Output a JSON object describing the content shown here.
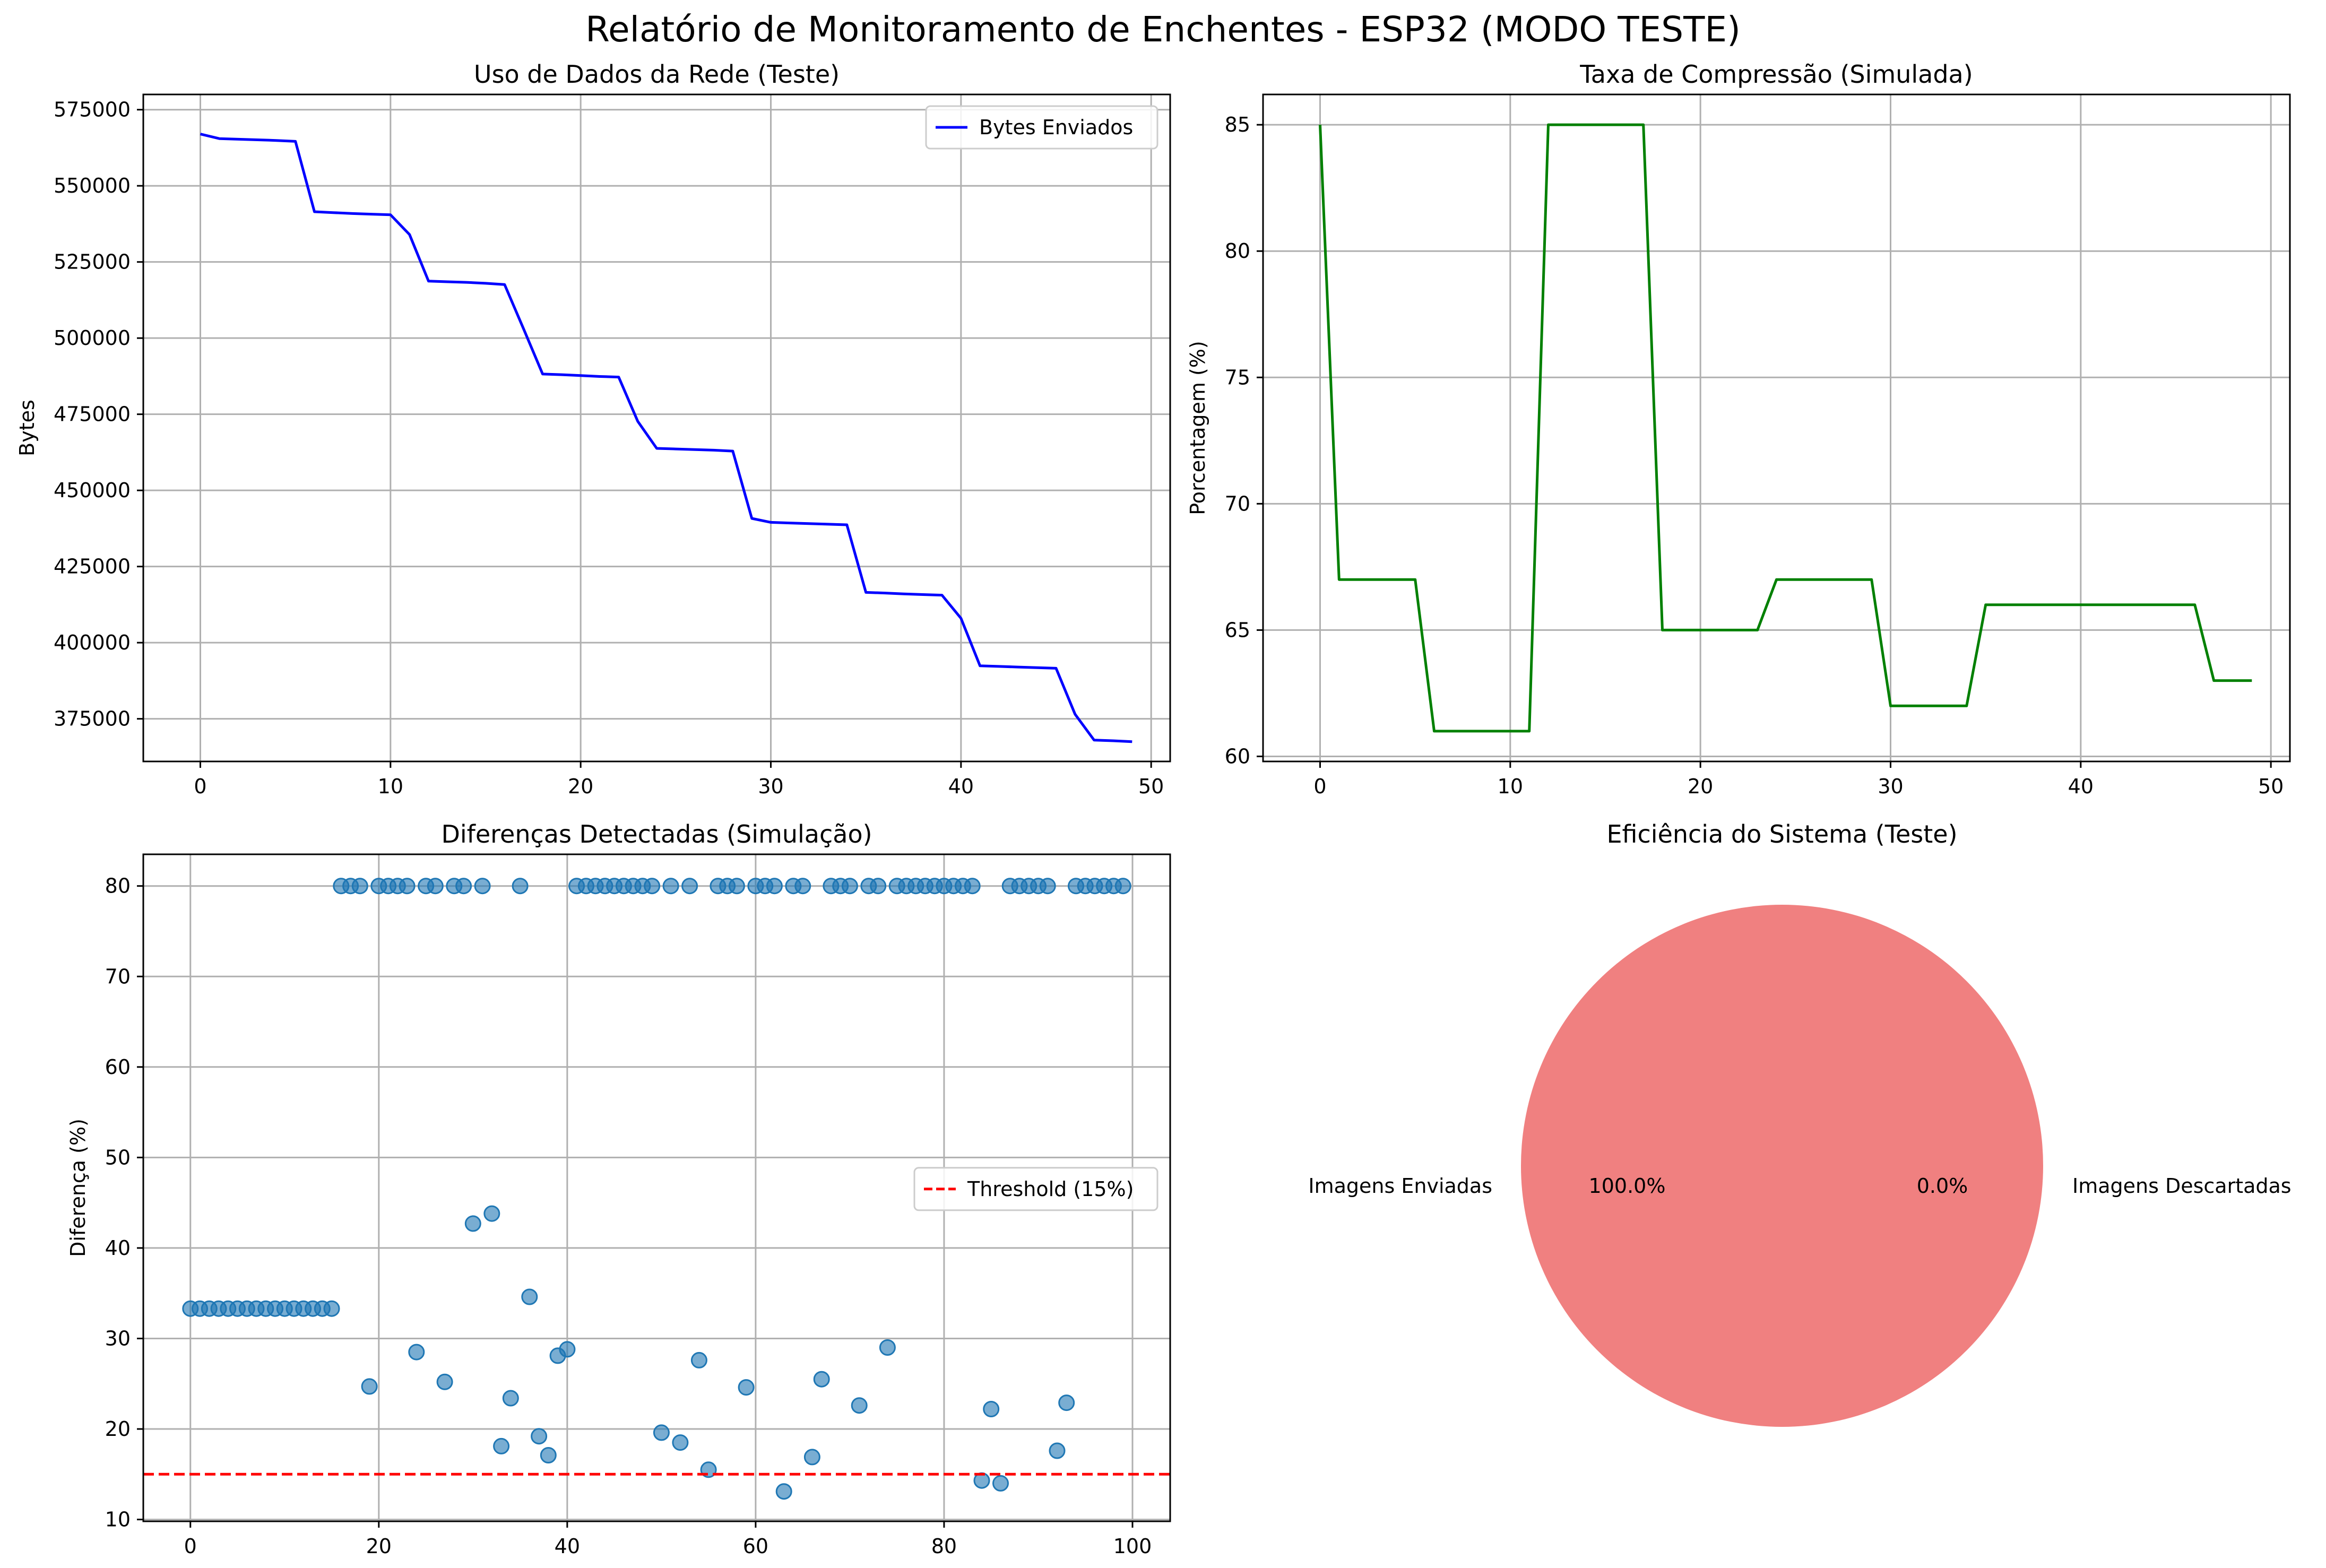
{
  "suptitle": "Relatório de Monitoramento de Enchentes - ESP32 (MODO TESTE)",
  "chart_data": [
    {
      "type": "line",
      "title": "Uso de Dados da Rede (Teste)",
      "xlabel": "",
      "ylabel": "Bytes",
      "xlim": [
        -3,
        51
      ],
      "ylim": [
        361000,
        580000
      ],
      "xticks": [
        0,
        10,
        20,
        30,
        40,
        50
      ],
      "yticks": [
        375000,
        400000,
        425000,
        450000,
        475000,
        500000,
        525000,
        550000,
        575000
      ],
      "grid": true,
      "legend": "top-right",
      "series": [
        {
          "name": "Bytes Enviados",
          "color": "#0000ff",
          "x": [
            0,
            1,
            2,
            3,
            4,
            5,
            6,
            7,
            8,
            9,
            10,
            11,
            12,
            13,
            14,
            15,
            16,
            17,
            18,
            19,
            20,
            21,
            22,
            23,
            24,
            25,
            26,
            27,
            28,
            29,
            30,
            31,
            32,
            33,
            34,
            35,
            36,
            37,
            38,
            39,
            40,
            41,
            42,
            43,
            44,
            45,
            46,
            47,
            48,
            49
          ],
          "y": [
            567000,
            565500,
            565300,
            565100,
            564900,
            564600,
            541500,
            541200,
            540900,
            540700,
            540500,
            534000,
            518700,
            518500,
            518300,
            518000,
            517600,
            503000,
            488200,
            488000,
            487700,
            487400,
            487200,
            472700,
            463800,
            463600,
            463400,
            463200,
            462900,
            440800,
            439500,
            439300,
            439100,
            438900,
            438700,
            416500,
            416300,
            416000,
            415800,
            415600,
            408000,
            392400,
            392200,
            392000,
            391800,
            391600,
            376500,
            368000,
            367800,
            367500
          ]
        }
      ]
    },
    {
      "type": "line",
      "title": "Taxa de Compressão (Simulada)",
      "xlabel": "",
      "ylabel": "Porcentagem (%)",
      "xlim": [
        -3,
        51
      ],
      "ylim": [
        59.8,
        86.2
      ],
      "xticks": [
        0,
        10,
        20,
        30,
        40,
        50
      ],
      "yticks": [
        60,
        65,
        70,
        75,
        80,
        85
      ],
      "grid": true,
      "series": [
        {
          "color": "#008000",
          "x": [
            0,
            1,
            2,
            3,
            4,
            5,
            6,
            7,
            8,
            9,
            10,
            11,
            12,
            13,
            14,
            15,
            16,
            17,
            18,
            19,
            20,
            21,
            22,
            23,
            24,
            25,
            26,
            27,
            28,
            29,
            30,
            31,
            32,
            33,
            34,
            35,
            36,
            37,
            38,
            39,
            40,
            41,
            42,
            43,
            44,
            45,
            46,
            47,
            48,
            49
          ],
          "y": [
            85,
            67,
            67,
            67,
            67,
            67,
            61,
            61,
            61,
            61,
            61,
            61,
            85,
            85,
            85,
            85,
            85,
            85,
            65,
            65,
            65,
            65,
            65,
            65,
            67,
            67,
            67,
            67,
            67,
            67,
            62,
            62,
            62,
            62,
            62,
            66,
            66,
            66,
            66,
            66,
            66,
            66,
            66,
            66,
            66,
            66,
            66,
            63,
            63,
            63
          ]
        }
      ]
    },
    {
      "type": "scatter",
      "title": "Diferenças Detectadas (Simulação)",
      "xlabel": "",
      "ylabel": "Diferença (%)",
      "xlim": [
        -5,
        104
      ],
      "ylim": [
        9.8,
        83.5
      ],
      "xticks": [
        0,
        20,
        40,
        60,
        80,
        100
      ],
      "yticks": [
        10,
        20,
        30,
        40,
        50,
        60,
        70,
        80
      ],
      "grid": true,
      "legend": "center-right",
      "series": [
        {
          "color": "#1f77b4",
          "x": [
            0,
            1,
            2,
            3,
            4,
            5,
            6,
            7,
            8,
            9,
            10,
            11,
            12,
            13,
            14,
            15,
            16,
            17,
            18,
            19,
            20,
            21,
            22,
            23,
            24,
            25,
            26,
            27,
            28,
            29,
            30,
            31,
            32,
            33,
            34,
            35,
            36,
            37,
            38,
            39,
            40,
            41,
            42,
            43,
            44,
            45,
            46,
            47,
            48,
            49,
            50,
            51,
            52,
            53,
            54,
            55,
            56,
            57,
            58,
            59,
            60,
            61,
            62,
            63,
            64,
            65,
            66,
            67,
            68,
            69,
            70,
            71,
            72,
            73,
            74,
            75,
            76,
            77,
            78,
            79,
            80,
            81,
            82,
            83,
            84,
            85,
            86,
            87,
            88,
            89,
            90,
            91,
            92,
            93,
            94,
            95,
            96,
            97,
            98,
            99
          ],
          "y": [
            33.3,
            33.3,
            33.3,
            33.3,
            33.3,
            33.3,
            33.3,
            33.3,
            33.3,
            33.3,
            33.3,
            33.3,
            33.3,
            33.3,
            33.3,
            33.3,
            80,
            80,
            80,
            24.7,
            80,
            80,
            80,
            80,
            28.5,
            80,
            80,
            25.2,
            80,
            80,
            42.7,
            80,
            43.8,
            18.1,
            23.4,
            80,
            34.6,
            19.2,
            17.1,
            28.1,
            28.8,
            80,
            80,
            80,
            80,
            80,
            80,
            80,
            80,
            80,
            19.6,
            80,
            18.5,
            80,
            27.6,
            15.5,
            80,
            80,
            80,
            24.6,
            80,
            80,
            80,
            13.1,
            80,
            80,
            16.9,
            25.5,
            80,
            80,
            80,
            22.6,
            80,
            80,
            29.0,
            80,
            80,
            80,
            80,
            80,
            80,
            80,
            80,
            80,
            14.3,
            22.2,
            14.0,
            80,
            80,
            80,
            80,
            80,
            17.6,
            22.9,
            80,
            80,
            80,
            80,
            80,
            80
          ]
        }
      ],
      "hline": {
        "name": "Threshold (15%)",
        "y": 15,
        "color": "#ff0000"
      }
    },
    {
      "type": "pie",
      "title": "Eficiência do Sistema (Teste)",
      "labels": [
        "Imagens Enviadas",
        "Imagens Descartadas"
      ],
      "values": [
        100.0,
        0.0
      ],
      "pct_labels": [
        "100.0%",
        "0.0%"
      ],
      "colors": [
        "#f08080",
        "#87ceeb"
      ]
    }
  ]
}
